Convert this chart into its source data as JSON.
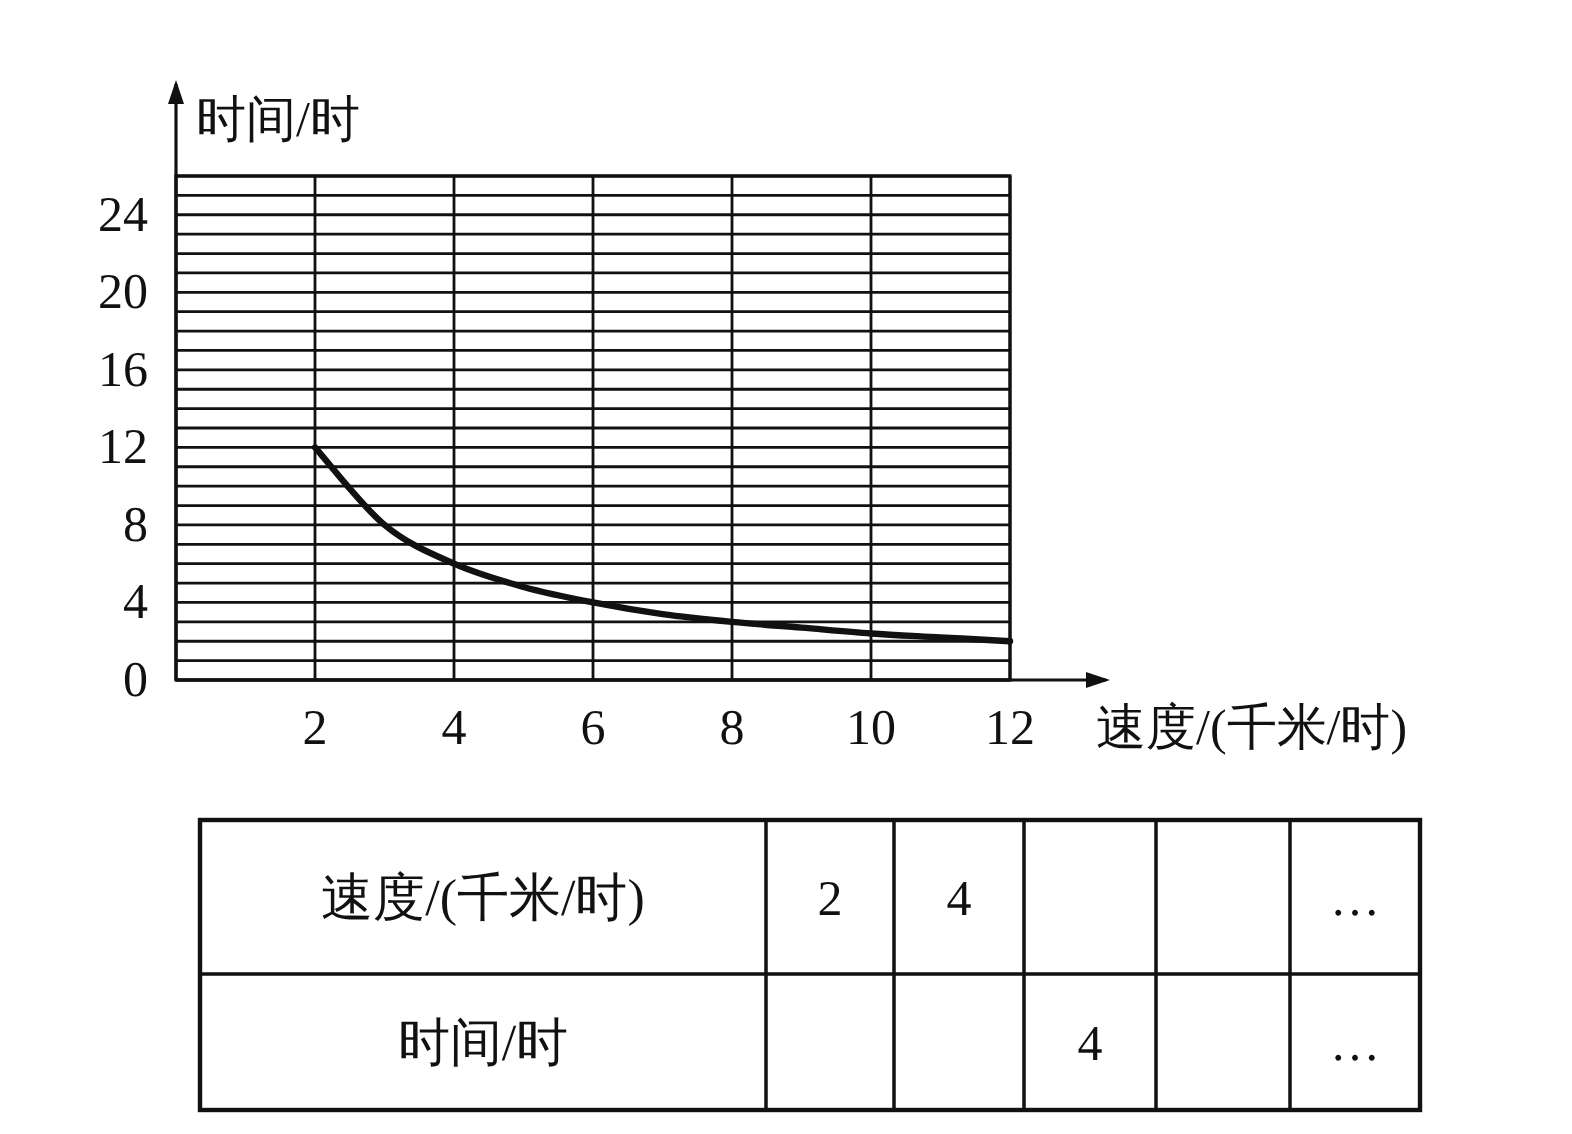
{
  "chart_data": [
    {
      "type": "line",
      "xlabel": "速度/(千米/时)",
      "ylabel": "时间/时",
      "x": [
        2,
        3,
        4,
        5,
        6,
        7,
        8,
        9,
        10,
        11,
        12
      ],
      "series": [
        {
          "color": "#111111",
          "values": [
            12,
            8,
            6,
            4.8,
            4,
            3.4,
            3,
            2.7,
            2.4,
            2.2,
            2
          ]
        }
      ],
      "xlim": [
        0,
        12
      ],
      "ylim": [
        0,
        26
      ],
      "xticks": [
        2,
        4,
        6,
        8,
        10,
        12
      ],
      "yticks": [
        0,
        {
          "value": 1,
          "label": null
        },
        {
          "value": 2,
          "label": null
        },
        {
          "value": 3,
          "label": null
        },
        4,
        {
          "value": 5,
          "label": null
        },
        {
          "value": 6,
          "label": null
        },
        {
          "value": 7,
          "label": null
        },
        8,
        {
          "value": 9,
          "label": null
        },
        {
          "value": 10,
          "label": null
        },
        {
          "value": 11,
          "label": null
        },
        12,
        {
          "value": 13,
          "label": null
        },
        {
          "value": 14,
          "label": null
        },
        {
          "value": 15,
          "label": null
        },
        16,
        {
          "value": 17,
          "label": null
        },
        {
          "value": 18,
          "label": null
        },
        {
          "value": 19,
          "label": null
        },
        20,
        {
          "value": 21,
          "label": null
        },
        {
          "value": 22,
          "label": null
        },
        {
          "value": 23,
          "label": null
        },
        24,
        {
          "value": 25,
          "label": null
        },
        {
          "value": 26,
          "label": null
        }
      ],
      "grid": true
    },
    {
      "type": "other",
      "y_categories": [
        "速度/(千米/时)",
        "时间/时"
      ],
      "cell_labels": [
        [
          "2",
          "4",
          null,
          null,
          "…"
        ],
        [
          null,
          null,
          "4",
          null,
          "…"
        ]
      ]
    }
  ]
}
